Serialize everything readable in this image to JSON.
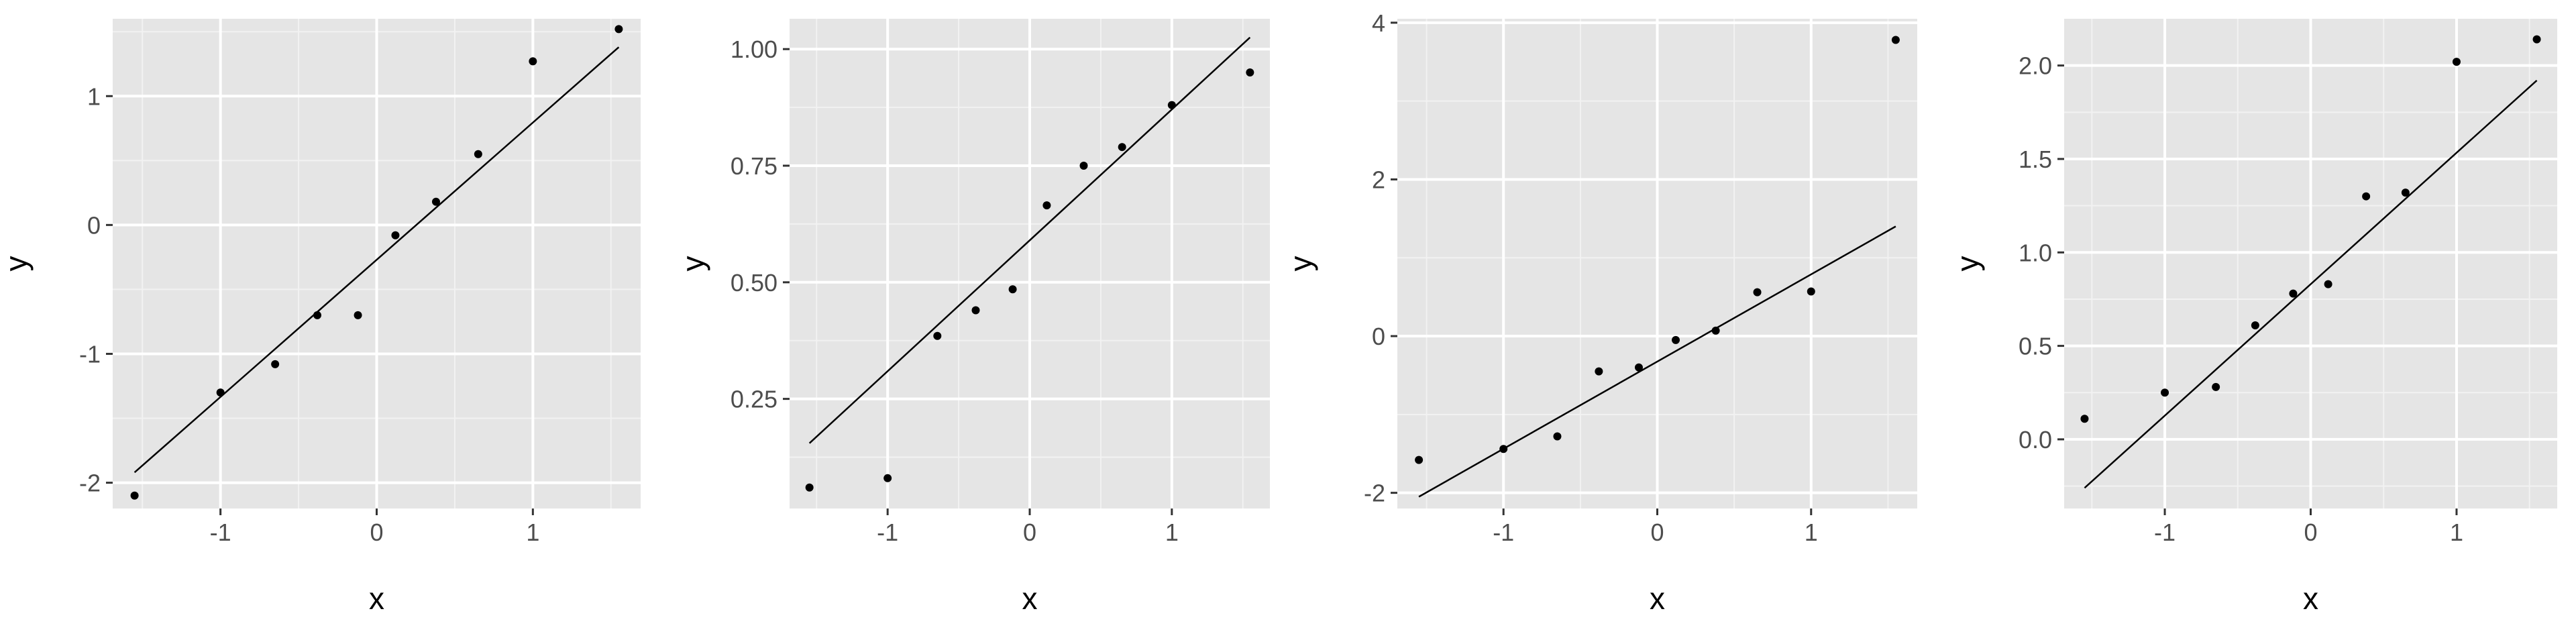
{
  "colors": {
    "panel_background": "#e5e5e5",
    "grid_major": "#ffffff",
    "grid_minor": "#f2f2f2",
    "points": "#000000",
    "line": "#000000",
    "tick_label": "#4d4d4d"
  },
  "chart_data": [
    {
      "type": "scatter",
      "xlabel": "x",
      "ylabel": "y",
      "grid": true,
      "xlim": [
        -1.69,
        1.69
      ],
      "ylim": [
        -2.2,
        1.6
      ],
      "xticks": [
        -1,
        0,
        1
      ],
      "xtick_labels": [
        "-1",
        "0",
        "1"
      ],
      "yticks": [
        -2,
        -1,
        0,
        1
      ],
      "ytick_labels": [
        "-2",
        "-1",
        "0",
        "1"
      ],
      "points": {
        "x": [
          -1.55,
          -1.0,
          -0.65,
          -0.38,
          -0.12,
          0.12,
          0.38,
          0.65,
          1.0,
          1.55
        ],
        "y": [
          -2.1,
          -1.3,
          -1.08,
          -0.7,
          -0.7,
          -0.08,
          0.18,
          0.55,
          1.27,
          1.52
        ]
      },
      "line": {
        "x": [
          -1.55,
          1.55
        ],
        "y": [
          -1.92,
          1.38
        ]
      }
    },
    {
      "type": "scatter",
      "xlabel": "x",
      "ylabel": "y",
      "grid": true,
      "xlim": [
        -1.69,
        1.69
      ],
      "ylim": [
        0.015,
        1.065
      ],
      "xticks": [
        -1,
        0,
        1
      ],
      "xtick_labels": [
        "-1",
        "0",
        "1"
      ],
      "yticks": [
        0.25,
        0.5,
        0.75,
        1.0
      ],
      "ytick_labels": [
        "0.25",
        "0.50",
        "0.75",
        "1.00"
      ],
      "points": {
        "x": [
          -1.55,
          -1.0,
          -0.65,
          -0.38,
          -0.12,
          0.12,
          0.38,
          0.65,
          1.0,
          1.55
        ],
        "y": [
          0.06,
          0.08,
          0.385,
          0.44,
          0.485,
          0.665,
          0.75,
          0.79,
          0.88,
          0.95
        ]
      },
      "line": {
        "x": [
          -1.55,
          1.55
        ],
        "y": [
          0.155,
          1.025
        ]
      }
    },
    {
      "type": "scatter",
      "xlabel": "x",
      "ylabel": "y",
      "grid": true,
      "xlim": [
        -1.69,
        1.69
      ],
      "ylim": [
        -2.2,
        4.05
      ],
      "xticks": [
        -1,
        0,
        1
      ],
      "xtick_labels": [
        "-1",
        "0",
        "1"
      ],
      "yticks": [
        -2,
        0,
        2,
        4
      ],
      "ytick_labels": [
        "-2",
        "0",
        "2",
        "4"
      ],
      "points": {
        "x": [
          -1.55,
          -1.0,
          -0.65,
          -0.38,
          -0.12,
          0.12,
          0.38,
          0.65,
          1.0,
          1.55
        ],
        "y": [
          -1.58,
          -1.44,
          -1.28,
          -0.45,
          -0.4,
          -0.05,
          0.07,
          0.56,
          0.57,
          3.78
        ]
      },
      "line": {
        "x": [
          -1.55,
          1.55
        ],
        "y": [
          -2.05,
          1.4
        ]
      }
    },
    {
      "type": "scatter",
      "xlabel": "x",
      "ylabel": "y",
      "grid": true,
      "xlim": [
        -1.69,
        1.69
      ],
      "ylim": [
        -0.37,
        2.25
      ],
      "xticks": [
        -1,
        0,
        1
      ],
      "xtick_labels": [
        "-1",
        "0",
        "1"
      ],
      "yticks": [
        0.0,
        0.5,
        1.0,
        1.5,
        2.0
      ],
      "ytick_labels": [
        "0.0",
        "0.5",
        "1.0",
        "1.5",
        "2.0"
      ],
      "points": {
        "x": [
          -1.55,
          -1.0,
          -0.65,
          -0.38,
          -0.12,
          0.12,
          0.38,
          0.65,
          1.0,
          1.55
        ],
        "y": [
          0.11,
          0.25,
          0.28,
          0.61,
          0.78,
          0.83,
          1.3,
          1.32,
          2.02,
          2.14
        ]
      },
      "line": {
        "x": [
          -1.55,
          1.55
        ],
        "y": [
          -0.26,
          1.92
        ]
      }
    }
  ]
}
